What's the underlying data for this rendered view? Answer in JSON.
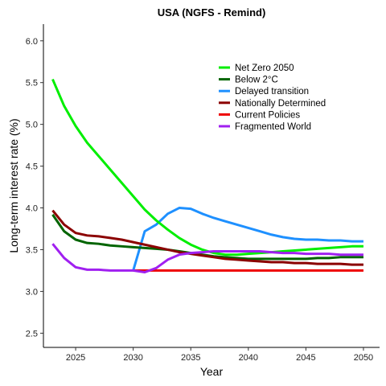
{
  "chart_data": {
    "type": "line",
    "title": "USA (NGFS - Remind)",
    "xlabel": "Year",
    "ylabel": "Long-term interest rate (%)",
    "xlim": [
      2022.2,
      2051.4
    ],
    "ylim": [
      2.33,
      6.2
    ],
    "xticks": [
      2025,
      2030,
      2035,
      2040,
      2045,
      2050
    ],
    "xtick_labels": [
      "2025",
      "2030",
      "2035",
      "2040",
      "2045",
      "2050"
    ],
    "yticks": [
      2.5,
      3.0,
      3.5,
      4.0,
      4.5,
      5.0,
      5.5,
      6.0
    ],
    "ytick_labels": [
      "2.5",
      "3.0",
      "3.5",
      "4.0",
      "4.5",
      "5.0",
      "5.5",
      "6.0"
    ],
    "grid": false,
    "legend_position": "top-right",
    "x": [
      2023,
      2024,
      2025,
      2026,
      2027,
      2028,
      2029,
      2030,
      2031,
      2032,
      2033,
      2034,
      2035,
      2036,
      2037,
      2038,
      2039,
      2040,
      2041,
      2042,
      2043,
      2044,
      2045,
      2046,
      2047,
      2048,
      2049,
      2050
    ],
    "series": [
      {
        "name": "Net Zero 2050",
        "color": "#00ee00",
        "values": [
          5.54,
          5.22,
          4.98,
          4.78,
          4.62,
          4.46,
          4.3,
          4.14,
          3.98,
          3.85,
          3.74,
          3.64,
          3.56,
          3.5,
          3.46,
          3.44,
          3.44,
          3.45,
          3.46,
          3.47,
          3.48,
          3.49,
          3.5,
          3.51,
          3.52,
          3.53,
          3.54,
          3.54
        ]
      },
      {
        "name": "Below 2°C",
        "color": "#006400",
        "values": [
          3.92,
          3.72,
          3.62,
          3.58,
          3.57,
          3.55,
          3.54,
          3.53,
          3.52,
          3.51,
          3.5,
          3.48,
          3.46,
          3.44,
          3.42,
          3.41,
          3.4,
          3.39,
          3.39,
          3.39,
          3.39,
          3.39,
          3.39,
          3.4,
          3.4,
          3.41,
          3.41,
          3.41
        ]
      },
      {
        "name": "Delayed transition",
        "color": "#1e90ff",
        "values": [
          null,
          null,
          null,
          null,
          null,
          null,
          null,
          3.25,
          3.72,
          3.8,
          3.93,
          4.0,
          3.99,
          3.93,
          3.88,
          3.84,
          3.8,
          3.76,
          3.72,
          3.68,
          3.65,
          3.63,
          3.62,
          3.62,
          3.61,
          3.61,
          3.6,
          3.6
        ]
      },
      {
        "name": "Nationally Determined",
        "color": "#8b0000",
        "values": [
          3.97,
          3.8,
          3.7,
          3.67,
          3.66,
          3.64,
          3.62,
          3.59,
          3.56,
          3.53,
          3.5,
          3.47,
          3.45,
          3.43,
          3.41,
          3.39,
          3.38,
          3.37,
          3.36,
          3.35,
          3.35,
          3.34,
          3.34,
          3.33,
          3.33,
          3.33,
          3.32,
          3.32
        ]
      },
      {
        "name": "Current Policies",
        "color": "#ee0000",
        "values": [
          null,
          null,
          null,
          null,
          null,
          null,
          null,
          3.25,
          3.25,
          3.25,
          3.25,
          3.25,
          3.25,
          3.25,
          3.25,
          3.25,
          3.25,
          3.25,
          3.25,
          3.25,
          3.25,
          3.25,
          3.25,
          3.25,
          3.25,
          3.25,
          3.25,
          3.25
        ]
      },
      {
        "name": "Fragmented World",
        "color": "#a020f0",
        "values": [
          3.57,
          3.4,
          3.29,
          3.26,
          3.26,
          3.25,
          3.25,
          3.25,
          3.23,
          3.28,
          3.38,
          3.44,
          3.46,
          3.47,
          3.48,
          3.48,
          3.48,
          3.48,
          3.48,
          3.47,
          3.46,
          3.46,
          3.45,
          3.45,
          3.45,
          3.44,
          3.44,
          3.44
        ]
      }
    ]
  }
}
